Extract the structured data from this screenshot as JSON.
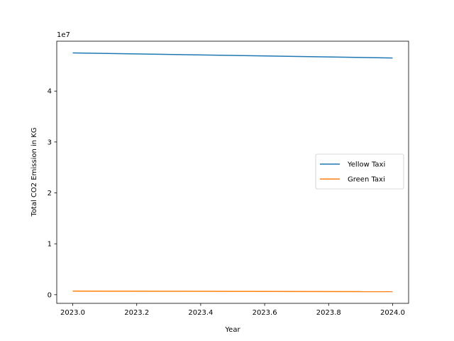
{
  "chart_data": {
    "type": "line",
    "xlabel": "Year",
    "ylabel": "Total CO2 Emission in KG",
    "y_multiplier_label": "1e7",
    "x_ticks": [
      "2023.0",
      "2023.2",
      "2023.4",
      "2023.6",
      "2023.8",
      "2024.0"
    ],
    "y_ticks": [
      "0",
      "1",
      "2",
      "3",
      "4"
    ],
    "xlim": [
      2022.95,
      2024.05
    ],
    "ylim": [
      -1700000,
      49800000
    ],
    "x": [
      2023,
      2024
    ],
    "series": [
      {
        "name": "Yellow Taxi",
        "color": "#1f77b4",
        "values": [
          47500000,
          46500000
        ]
      },
      {
        "name": "Green Taxi",
        "color": "#ff7f0e",
        "values": [
          700000,
          600000
        ]
      }
    ],
    "legend_position": "center-right",
    "grid": false
  }
}
